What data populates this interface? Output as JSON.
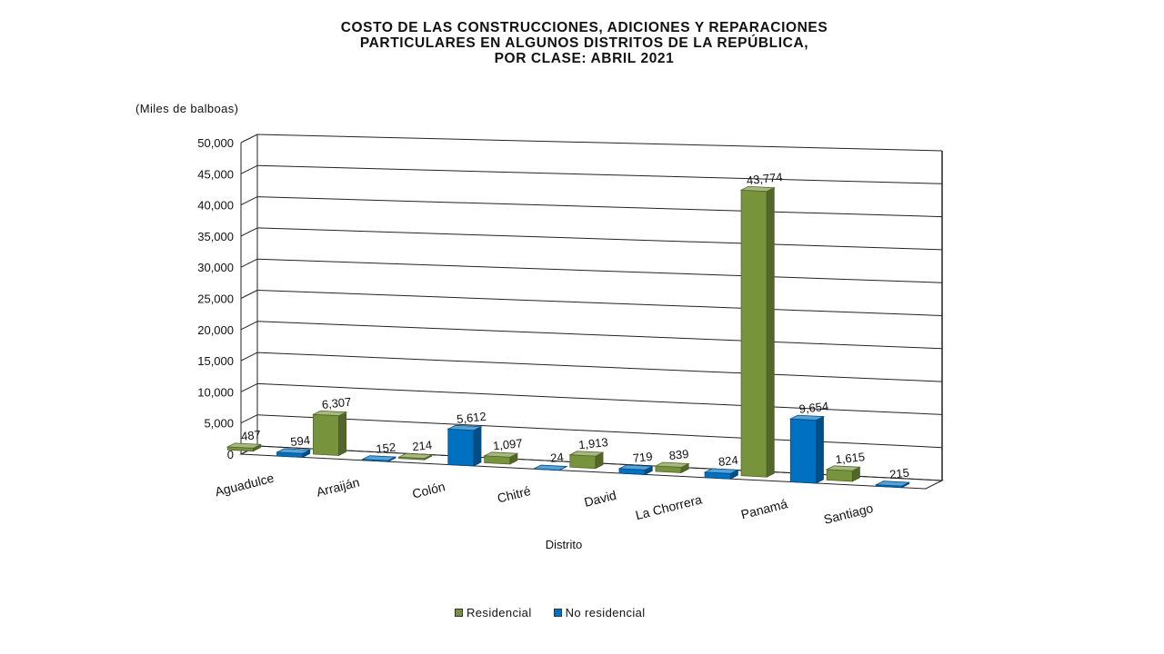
{
  "chart_data": {
    "type": "bar",
    "title_lines": [
      "COSTO DE LAS CONSTRUCCIONES, ADICIONES Y REPARACIONES",
      "PARTICULARES  EN ALGUNOS DISTRITOS DE LA REPÚBLICA,",
      "POR CLASE: ABRIL 2021"
    ],
    "unit_label": "(Miles de balboas)",
    "xlabel": "Distrito",
    "ylabel": "",
    "ylim": [
      0,
      50000
    ],
    "yticks": [
      0,
      5000,
      10000,
      15000,
      20000,
      25000,
      30000,
      35000,
      40000,
      45000,
      50000
    ],
    "ytick_labels": [
      "0",
      "5,000",
      "10,000",
      "15,000",
      "20,000",
      "25,000",
      "30,000",
      "35,000",
      "40,000",
      "45,000",
      "50,000"
    ],
    "categories": [
      "Aguadulce",
      "Arraiján",
      "Colón",
      "Chitré",
      "David",
      "La Chorrera",
      "Panamá",
      "Santiago"
    ],
    "series": [
      {
        "name": "Residencial",
        "color": "#77933C",
        "values": [
          487,
          6307,
          214,
          1097,
          1913,
          839,
          43774,
          1615
        ],
        "labels": [
          "487",
          "6,307",
          "214",
          "1,097",
          "1,913",
          "839",
          "43,774",
          "1,615"
        ]
      },
      {
        "name": "No residencial",
        "color": "#0070C0",
        "values": [
          594,
          152,
          5612,
          24,
          719,
          824,
          9654,
          215
        ],
        "labels": [
          "594",
          "152",
          "5,612",
          "24",
          "719",
          "824",
          "9,654",
          "215"
        ]
      }
    ],
    "grid": true,
    "legend_position": "bottom",
    "three_d": true
  }
}
